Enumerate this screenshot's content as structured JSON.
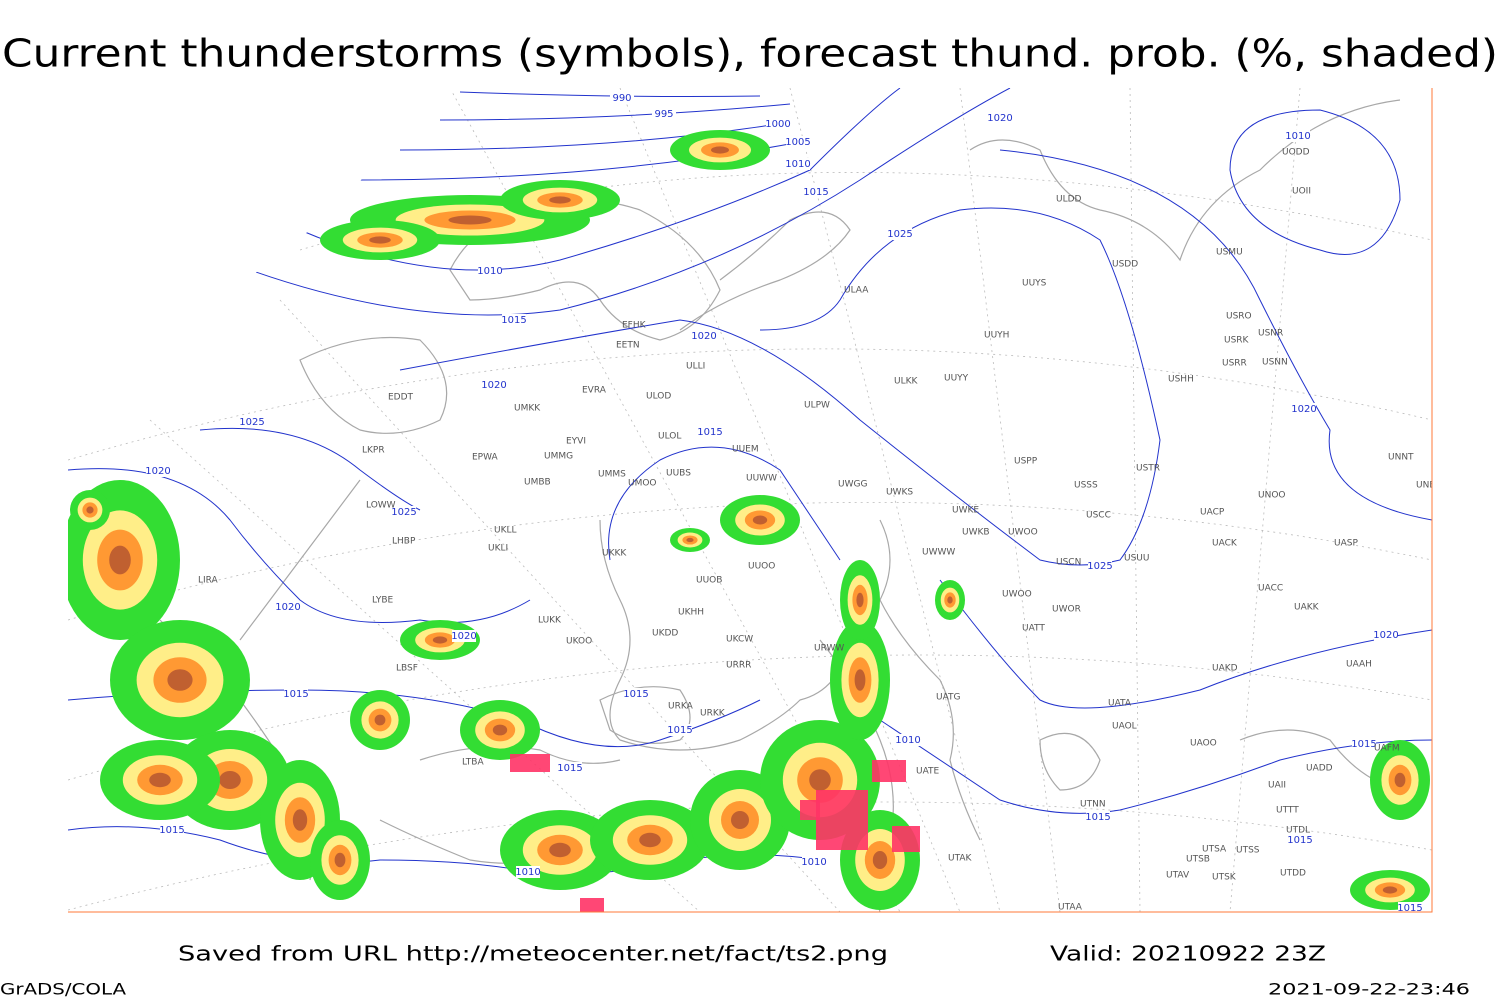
{
  "header": {
    "title": "Current thunderstorms (symbols), forecast thund. prob. (%, shaded)"
  },
  "map": {
    "isobar_labels": [
      "990",
      "995",
      "1000",
      "1005",
      "1010",
      "1015",
      "1010",
      "1015",
      "1020",
      "1025",
      "1010",
      "1020",
      "1020",
      "1025",
      "1020",
      "1025",
      "1015",
      "1020",
      "1020",
      "1015",
      "1015",
      "1015",
      "1015",
      "1010",
      "1015",
      "1010",
      "1010",
      "1025",
      "1020",
      "1020",
      "1015",
      "1015",
      "1015",
      "1015"
    ],
    "stations": [
      "ULDD",
      "UODD",
      "UOII",
      "USDD",
      "USMU",
      "ULAA",
      "UUYS",
      "USRO",
      "USRK",
      "USNR",
      "USRR",
      "USNN",
      "UUYH",
      "USHH",
      "ULKK",
      "UUYY",
      "EFHK",
      "EETN",
      "ULLI",
      "EVRA",
      "ULOD",
      "ULPW",
      "UMKK",
      "EDDT",
      "EYVI",
      "ULOL",
      "UUEM",
      "UMMG",
      "EPWA",
      "LKPR",
      "UMMS",
      "UUBS",
      "UMOO",
      "UUWW",
      "UMBB",
      "UWGG",
      "UWKS",
      "USPP",
      "USSS",
      "USTR",
      "UNOO",
      "UNNT",
      "UNBB",
      "UWKE",
      "UWKB",
      "UWOO",
      "USCC",
      "UACP",
      "UACK",
      "UASP",
      "LOWW",
      "UKLL",
      "UKLI",
      "LHBP",
      "UKKK",
      "UUOO",
      "UWWW",
      "UUOB",
      "USCN",
      "USUU",
      "UACC",
      "UAKK",
      "UWOO",
      "UWOR",
      "UATT",
      "LIRA",
      "LYBE",
      "LUKK",
      "UKOO",
      "UKHH",
      "UKDD",
      "UKCW",
      "LBSF",
      "URRR",
      "URWW",
      "UAKD",
      "UAAH",
      "UATG",
      "URKA",
      "URKK",
      "UAOL",
      "UAOO",
      "UATA",
      "UATE",
      "LTBA",
      "UTNN",
      "UTSA",
      "UTSB",
      "UTSS",
      "UTAK",
      "UTAV",
      "UTSK",
      "UTDD",
      "UTDL",
      "UTTT",
      "UAII",
      "UADD",
      "UAFM",
      "UTAA"
    ]
  },
  "footer": {
    "source": "Saved from URL http://meteocenter.net/fact/ts2.png",
    "valid": "Valid: 20210922 23Z",
    "software": "GrADS/COLA",
    "timestamp": "2021-09-22-23:46"
  }
}
